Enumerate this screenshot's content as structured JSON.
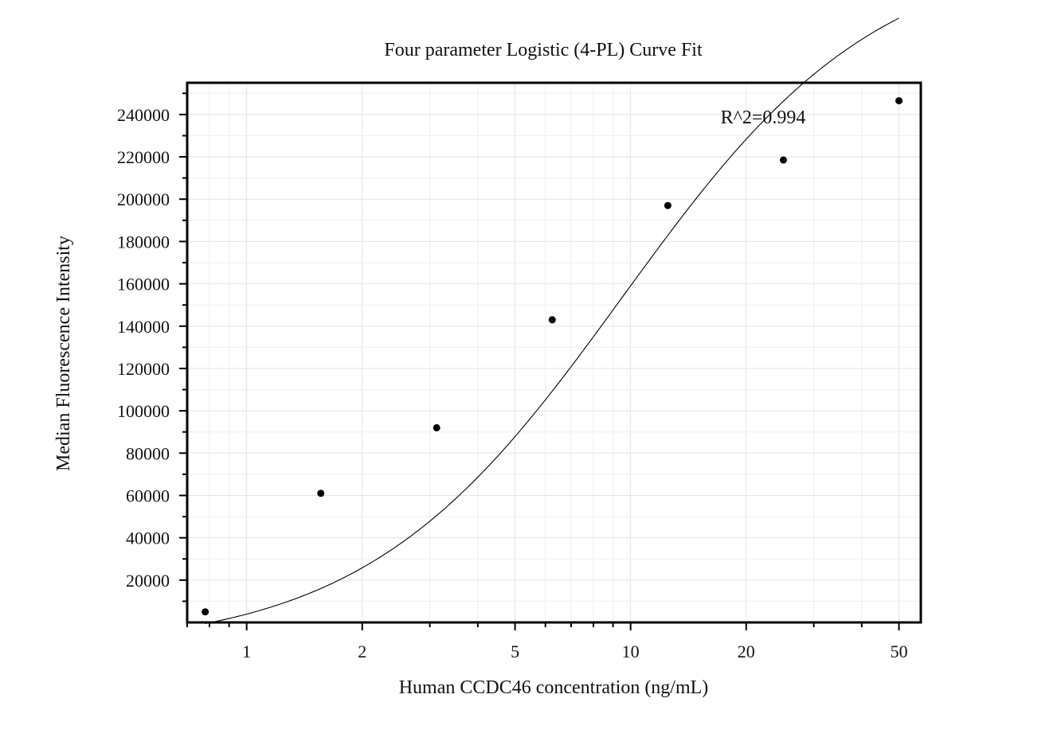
{
  "chart_data": {
    "type": "scatter",
    "title": "Four parameter Logistic (4-PL) Curve Fit",
    "xlabel": "Human CCDC46 concentration (ng/mL)",
    "ylabel": "Median Fluorescence Intensity",
    "x_scale": "log",
    "xlim": [
      0.7,
      57
    ],
    "ylim": [
      0,
      255000
    ],
    "x_ticks": [
      1,
      2,
      5,
      10,
      20,
      50
    ],
    "x_tick_labels": [
      "1",
      "2",
      "5",
      "10",
      "20",
      "50"
    ],
    "y_ticks": [
      20000,
      40000,
      60000,
      80000,
      100000,
      120000,
      140000,
      160000,
      180000,
      200000,
      220000,
      240000
    ],
    "y_tick_labels": [
      "20000",
      "40000",
      "60000",
      "80000",
      "100000",
      "120000",
      "140000",
      "160000",
      "180000",
      "200000",
      "220000",
      "240000"
    ],
    "grid": true,
    "series": [
      {
        "x": [
          0.78,
          1.56,
          3.125,
          6.25,
          12.5,
          25,
          50
        ],
        "y": [
          5000,
          61000,
          92000,
          143000,
          197000,
          218500,
          246500
        ]
      }
    ],
    "fit": {
      "model": "4PL",
      "a": -13000,
      "b": 1.3,
      "c": 9.5,
      "d": 320000
    },
    "annotation": "R^2=0.994"
  }
}
